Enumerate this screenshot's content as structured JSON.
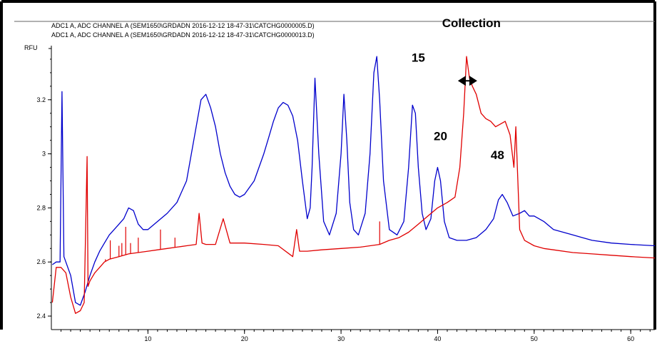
{
  "chart_data": {
    "type": "line",
    "title": "",
    "xlabel": "",
    "ylabel": "RFU",
    "xlim": [
      0,
      62.5
    ],
    "ylim": [
      2.35,
      3.4
    ],
    "x_ticks": [
      10,
      20,
      30,
      40,
      50,
      60
    ],
    "y_ticks": [
      2.4,
      2.6,
      2.8,
      3,
      3.2
    ],
    "y_tick_labels": [
      "2.4",
      "2.6",
      "2.8",
      "3",
      "3.2"
    ],
    "grid": false,
    "legend_position": "top-left",
    "series": [
      {
        "name": "ADC1 A, ADC CHANNEL A (SEM1650\\GRDADN 2016-12-12 18-47-31\\CATCHG0000005.D)",
        "color": "#0000cc",
        "x": [
          0.1,
          0.5,
          0.9,
          1.1,
          1.3,
          1.5,
          2.0,
          2.5,
          3.0,
          3.5,
          4.0,
          4.5,
          5.0,
          5.5,
          6.0,
          6.5,
          7.0,
          7.5,
          8.0,
          8.5,
          9.0,
          9.5,
          10.0,
          11.0,
          12.0,
          13.0,
          14.0,
          15.0,
          15.5,
          16.0,
          16.5,
          17.0,
          17.5,
          18.0,
          18.5,
          19.0,
          19.5,
          20.0,
          21.0,
          22.0,
          22.5,
          23.0,
          23.5,
          24.0,
          24.5,
          25.0,
          25.5,
          26.0,
          26.5,
          26.8,
          27.0,
          27.3,
          27.7,
          28.2,
          28.8,
          29.5,
          30.0,
          30.3,
          30.6,
          30.9,
          31.3,
          31.8,
          32.5,
          33.0,
          33.4,
          33.7,
          34.0,
          34.4,
          35.0,
          35.8,
          36.5,
          37.0,
          37.4,
          37.7,
          38.0,
          38.4,
          38.8,
          39.3,
          39.7,
          40.0,
          40.3,
          40.7,
          41.2,
          42.0,
          43.0,
          44.0,
          45.0,
          45.8,
          46.3,
          46.7,
          47.2,
          47.8,
          48.5,
          49.0,
          49.5,
          50.0,
          51.0,
          52.0,
          53.0,
          54.0,
          55.0,
          56.0,
          58.0,
          60.0,
          62.5
        ],
        "values": [
          2.59,
          2.6,
          2.6,
          3.23,
          2.62,
          2.6,
          2.55,
          2.45,
          2.44,
          2.49,
          2.55,
          2.6,
          2.64,
          2.67,
          2.7,
          2.72,
          2.74,
          2.76,
          2.8,
          2.79,
          2.74,
          2.72,
          2.72,
          2.75,
          2.78,
          2.82,
          2.9,
          3.1,
          3.2,
          3.22,
          3.17,
          3.1,
          3.0,
          2.93,
          2.88,
          2.85,
          2.84,
          2.85,
          2.9,
          3.0,
          3.06,
          3.12,
          3.17,
          3.19,
          3.18,
          3.14,
          3.05,
          2.9,
          2.76,
          2.8,
          2.95,
          3.28,
          3.0,
          2.75,
          2.7,
          2.78,
          3.0,
          3.22,
          3.05,
          2.82,
          2.72,
          2.7,
          2.78,
          3.0,
          3.3,
          3.36,
          3.2,
          2.9,
          2.72,
          2.7,
          2.75,
          2.95,
          3.18,
          3.15,
          2.95,
          2.78,
          2.72,
          2.76,
          2.9,
          2.95,
          2.9,
          2.75,
          2.69,
          2.68,
          2.68,
          2.69,
          2.72,
          2.76,
          2.83,
          2.85,
          2.82,
          2.77,
          2.78,
          2.79,
          2.77,
          2.77,
          2.75,
          2.72,
          2.71,
          2.7,
          2.69,
          2.68,
          2.67,
          2.665,
          2.66
        ]
      },
      {
        "name": "ADC1 A, ADC CHANNEL A (SEM1650\\GRDADN 2016-12-12 18-47-31\\CATCHG0000013.D)",
        "color": "#e00000",
        "x": [
          0.1,
          0.5,
          1.0,
          1.5,
          2.0,
          2.5,
          3.0,
          3.4,
          3.7,
          3.8,
          4.0,
          4.5,
          5.0,
          5.5,
          6.0,
          7.0,
          8.0,
          9.0,
          10.0,
          11.0,
          12.0,
          13.0,
          14.0,
          15.0,
          15.3,
          15.6,
          16.0,
          17.0,
          17.8,
          18.5,
          20.0,
          22.0,
          23.5,
          25.0,
          25.4,
          25.7,
          26.5,
          28.0,
          30.0,
          32.0,
          34.0,
          35.0,
          36.0,
          37.0,
          38.0,
          39.0,
          40.0,
          41.0,
          41.8,
          42.3,
          42.7,
          43.0,
          43.3,
          43.6,
          44.0,
          44.5,
          45.0,
          45.5,
          46.0,
          46.5,
          47.0,
          47.5,
          47.9,
          48.1,
          48.5,
          49.0,
          50.0,
          51.0,
          52.0,
          54.0,
          56.0,
          58.0,
          60.0,
          62.5
        ],
        "values": [
          2.45,
          2.58,
          2.58,
          2.56,
          2.47,
          2.41,
          2.42,
          2.45,
          2.99,
          2.51,
          2.53,
          2.56,
          2.58,
          2.6,
          2.61,
          2.62,
          2.63,
          2.635,
          2.64,
          2.645,
          2.65,
          2.655,
          2.66,
          2.665,
          2.78,
          2.67,
          2.665,
          2.665,
          2.76,
          2.67,
          2.67,
          2.665,
          2.66,
          2.62,
          2.72,
          2.64,
          2.64,
          2.645,
          2.65,
          2.655,
          2.665,
          2.68,
          2.69,
          2.71,
          2.74,
          2.77,
          2.8,
          2.82,
          2.84,
          2.95,
          3.15,
          3.36,
          3.28,
          3.25,
          3.22,
          3.15,
          3.13,
          3.12,
          3.1,
          3.11,
          3.12,
          3.07,
          2.95,
          3.1,
          2.72,
          2.68,
          2.66,
          2.65,
          2.645,
          2.635,
          2.63,
          2.625,
          2.62,
          2.615
        ]
      }
    ],
    "spike_markers": [
      {
        "x": 5.6,
        "y": 2.61,
        "series": 1
      },
      {
        "x": 6.1,
        "y": 2.68,
        "series": 1
      },
      {
        "x": 7.0,
        "y": 2.66,
        "series": 1
      },
      {
        "x": 7.3,
        "y": 2.67,
        "series": 1
      },
      {
        "x": 7.7,
        "y": 2.73,
        "series": 1
      },
      {
        "x": 8.2,
        "y": 2.67,
        "series": 1
      },
      {
        "x": 9.0,
        "y": 2.69,
        "series": 1
      },
      {
        "x": 11.3,
        "y": 2.72,
        "series": 1
      },
      {
        "x": 12.8,
        "y": 2.69,
        "series": 1
      },
      {
        "x": 34.0,
        "y": 2.75,
        "series": 1
      }
    ],
    "annotations": [
      {
        "text": "Collection",
        "x": 43.5,
        "y": 3.9
      },
      {
        "text": "15",
        "x": 38.0,
        "y": 3.34
      },
      {
        "text": "20",
        "x": 40.3,
        "y": 3.05
      },
      {
        "text": "48",
        "x": 46.2,
        "y": 2.98
      }
    ],
    "collection_marker": {
      "x_start": 42.1,
      "x_end": 44.1,
      "y": 3.27
    }
  }
}
